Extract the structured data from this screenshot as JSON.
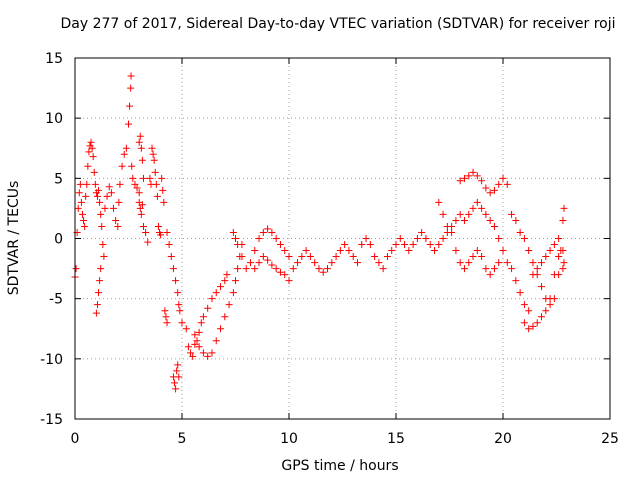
{
  "chart_data": {
    "type": "scatter",
    "title": "Day 277 of 2017, Sidereal Day-to-day VTEC variation (SDTVAR) for receiver roji",
    "xlabel": "GPS time / hours",
    "ylabel": "SDTVAR / TECUs",
    "xlim": [
      0,
      25
    ],
    "ylim": [
      -15,
      15
    ],
    "xticks": [
      0,
      5,
      10,
      15,
      20,
      25
    ],
    "yticks": [
      -15,
      -10,
      -5,
      0,
      5,
      10,
      15
    ],
    "grid": true,
    "marker": "+",
    "color": "#ff0000",
    "series": [
      {
        "name": "SDTVAR",
        "points": [
          [
            0.0,
            -3.2
          ],
          [
            0.05,
            -2.5
          ],
          [
            0.1,
            0.5
          ],
          [
            0.15,
            2.5
          ],
          [
            0.2,
            3.8
          ],
          [
            0.25,
            4.5
          ],
          [
            0.3,
            3.0
          ],
          [
            0.35,
            2.0
          ],
          [
            0.4,
            1.5
          ],
          [
            0.45,
            1.0
          ],
          [
            0.5,
            3.5
          ],
          [
            0.55,
            4.5
          ],
          [
            0.6,
            6.0
          ],
          [
            0.65,
            7.2
          ],
          [
            0.7,
            7.7
          ],
          [
            0.75,
            8.0
          ],
          [
            0.8,
            7.5
          ],
          [
            0.85,
            6.8
          ],
          [
            0.9,
            5.5
          ],
          [
            0.95,
            4.5
          ],
          [
            1.0,
            3.8
          ],
          [
            1.05,
            3.5
          ],
          [
            1.1,
            4.0
          ],
          [
            1.15,
            3.0
          ],
          [
            1.2,
            2.0
          ],
          [
            1.25,
            1.0
          ],
          [
            1.3,
            -0.5
          ],
          [
            1.35,
            -1.5
          ],
          [
            1.0,
            -6.2
          ],
          [
            1.05,
            -5.5
          ],
          [
            1.1,
            -4.5
          ],
          [
            1.15,
            -3.5
          ],
          [
            1.2,
            -2.5
          ],
          [
            1.4,
            2.5
          ],
          [
            1.5,
            3.5
          ],
          [
            1.6,
            4.3
          ],
          [
            1.7,
            3.8
          ],
          [
            1.8,
            2.5
          ],
          [
            1.9,
            1.5
          ],
          [
            2.0,
            1.0
          ],
          [
            2.05,
            3.0
          ],
          [
            2.1,
            4.5
          ],
          [
            2.2,
            6.0
          ],
          [
            2.3,
            7.0
          ],
          [
            2.4,
            7.5
          ],
          [
            2.5,
            9.5
          ],
          [
            2.55,
            11.0
          ],
          [
            2.6,
            12.5
          ],
          [
            2.62,
            13.5
          ],
          [
            2.65,
            6.0
          ],
          [
            2.7,
            5.0
          ],
          [
            2.8,
            4.5
          ],
          [
            2.9,
            4.2
          ],
          [
            3.0,
            3.8
          ],
          [
            3.0,
            8.0
          ],
          [
            3.05,
            8.5
          ],
          [
            3.1,
            7.5
          ],
          [
            3.15,
            6.5
          ],
          [
            3.2,
            5.0
          ],
          [
            3.0,
            3.0
          ],
          [
            3.05,
            2.5
          ],
          [
            3.1,
            2.0
          ],
          [
            3.15,
            2.8
          ],
          [
            3.2,
            1.0
          ],
          [
            3.3,
            0.5
          ],
          [
            3.4,
            -0.3
          ],
          [
            3.5,
            5.0
          ],
          [
            3.55,
            4.5
          ],
          [
            3.6,
            7.5
          ],
          [
            3.65,
            7.0
          ],
          [
            3.7,
            6.5
          ],
          [
            3.75,
            5.5
          ],
          [
            3.8,
            4.5
          ],
          [
            3.85,
            3.5
          ],
          [
            3.9,
            1.0
          ],
          [
            3.95,
            0.5
          ],
          [
            4.0,
            0.3
          ],
          [
            4.05,
            5.0
          ],
          [
            4.1,
            4.0
          ],
          [
            4.15,
            3.0
          ],
          [
            4.2,
            -6.0
          ],
          [
            4.25,
            -6.5
          ],
          [
            4.3,
            -7.0
          ],
          [
            4.3,
            0.5
          ],
          [
            4.4,
            -0.5
          ],
          [
            4.5,
            -1.5
          ],
          [
            4.6,
            -2.5
          ],
          [
            4.7,
            -3.5
          ],
          [
            4.8,
            -4.5
          ],
          [
            4.85,
            -5.5
          ],
          [
            4.9,
            -6.0
          ],
          [
            4.6,
            -11.5
          ],
          [
            4.65,
            -12.0
          ],
          [
            4.7,
            -12.5
          ],
          [
            4.75,
            -11.0
          ],
          [
            4.8,
            -10.5
          ],
          [
            4.85,
            -11.5
          ],
          [
            5.0,
            -7.0
          ],
          [
            5.2,
            -7.5
          ],
          [
            5.3,
            -9.0
          ],
          [
            5.4,
            -9.5
          ],
          [
            5.5,
            -9.8
          ],
          [
            5.6,
            -8.8
          ],
          [
            5.7,
            -8.5
          ],
          [
            5.8,
            -7.8
          ],
          [
            5.9,
            -7.0
          ],
          [
            6.0,
            -6.5
          ],
          [
            6.2,
            -5.8
          ],
          [
            6.4,
            -5.0
          ],
          [
            6.6,
            -4.5
          ],
          [
            6.8,
            -4.0
          ],
          [
            7.0,
            -3.5
          ],
          [
            7.1,
            -3.0
          ],
          [
            5.6,
            -8.0
          ],
          [
            5.8,
            -9.0
          ],
          [
            6.0,
            -9.5
          ],
          [
            6.2,
            -9.8
          ],
          [
            6.4,
            -9.5
          ],
          [
            6.6,
            -8.5
          ],
          [
            6.8,
            -7.5
          ],
          [
            7.0,
            -6.5
          ],
          [
            7.2,
            -5.5
          ],
          [
            7.4,
            -4.5
          ],
          [
            7.5,
            -3.5
          ],
          [
            7.6,
            -2.5
          ],
          [
            7.7,
            -1.5
          ],
          [
            7.8,
            -0.5
          ],
          [
            7.4,
            0.5
          ],
          [
            7.5,
            0.0
          ],
          [
            7.6,
            -0.5
          ],
          [
            7.8,
            -1.5
          ],
          [
            8.0,
            -2.5
          ],
          [
            8.2,
            -2.0
          ],
          [
            8.4,
            -1.0
          ],
          [
            8.6,
            0.0
          ],
          [
            8.8,
            0.5
          ],
          [
            9.0,
            0.8
          ],
          [
            9.2,
            0.5
          ],
          [
            9.4,
            0.0
          ],
          [
            9.6,
            -0.5
          ],
          [
            9.8,
            -1.0
          ],
          [
            10.0,
            -1.5
          ],
          [
            8.4,
            -2.5
          ],
          [
            8.6,
            -2.0
          ],
          [
            8.8,
            -1.5
          ],
          [
            9.0,
            -1.8
          ],
          [
            9.2,
            -2.2
          ],
          [
            9.4,
            -2.5
          ],
          [
            9.6,
            -2.8
          ],
          [
            9.8,
            -3.0
          ],
          [
            10.0,
            -3.5
          ],
          [
            10.2,
            -2.5
          ],
          [
            10.4,
            -2.0
          ],
          [
            10.6,
            -1.5
          ],
          [
            10.8,
            -1.0
          ],
          [
            11.0,
            -1.5
          ],
          [
            11.2,
            -2.0
          ],
          [
            11.4,
            -2.5
          ],
          [
            11.6,
            -2.8
          ],
          [
            11.8,
            -2.5
          ],
          [
            12.0,
            -2.0
          ],
          [
            12.2,
            -1.5
          ],
          [
            12.4,
            -1.0
          ],
          [
            12.6,
            -0.5
          ],
          [
            12.8,
            -1.0
          ],
          [
            13.0,
            -1.5
          ],
          [
            13.2,
            -2.0
          ],
          [
            13.4,
            -0.5
          ],
          [
            13.6,
            0.0
          ],
          [
            13.8,
            -0.5
          ],
          [
            14.0,
            -1.5
          ],
          [
            14.2,
            -2.0
          ],
          [
            14.4,
            -2.5
          ],
          [
            14.6,
            -1.5
          ],
          [
            14.8,
            -1.0
          ],
          [
            15.0,
            -0.5
          ],
          [
            15.2,
            0.0
          ],
          [
            15.4,
            -0.5
          ],
          [
            15.6,
            -1.0
          ],
          [
            15.8,
            -0.5
          ],
          [
            16.0,
            0.0
          ],
          [
            16.2,
            0.5
          ],
          [
            16.4,
            0.0
          ],
          [
            16.6,
            -0.5
          ],
          [
            16.8,
            -1.0
          ],
          [
            17.0,
            -0.5
          ],
          [
            17.2,
            0.0
          ],
          [
            17.4,
            0.5
          ],
          [
            17.6,
            1.0
          ],
          [
            17.8,
            1.5
          ],
          [
            18.0,
            2.0
          ],
          [
            18.2,
            1.5
          ],
          [
            18.4,
            2.0
          ],
          [
            18.6,
            2.5
          ],
          [
            18.8,
            3.0
          ],
          [
            19.0,
            2.5
          ],
          [
            19.2,
            2.0
          ],
          [
            19.4,
            1.5
          ],
          [
            19.6,
            1.0
          ],
          [
            19.8,
            0.0
          ],
          [
            20.0,
            -1.0
          ],
          [
            20.2,
            -2.0
          ],
          [
            20.4,
            -2.5
          ],
          [
            20.6,
            -3.5
          ],
          [
            20.8,
            -4.5
          ],
          [
            21.0,
            -5.5
          ],
          [
            21.2,
            -6.0
          ],
          [
            17.0,
            3.0
          ],
          [
            17.2,
            2.0
          ],
          [
            17.4,
            1.0
          ],
          [
            17.6,
            0.5
          ],
          [
            17.8,
            -1.0
          ],
          [
            18.0,
            -2.0
          ],
          [
            18.2,
            -2.5
          ],
          [
            18.4,
            -2.0
          ],
          [
            18.6,
            -1.5
          ],
          [
            18.8,
            -1.0
          ],
          [
            19.0,
            -1.5
          ],
          [
            19.2,
            -2.5
          ],
          [
            19.4,
            -3.0
          ],
          [
            19.6,
            -2.5
          ],
          [
            19.8,
            -2.0
          ],
          [
            18.0,
            4.8
          ],
          [
            18.2,
            5.0
          ],
          [
            18.4,
            5.2
          ],
          [
            18.6,
            5.5
          ],
          [
            18.8,
            5.2
          ],
          [
            19.0,
            4.8
          ],
          [
            19.2,
            4.2
          ],
          [
            19.4,
            3.8
          ],
          [
            19.6,
            4.0
          ],
          [
            19.8,
            4.5
          ],
          [
            20.0,
            5.0
          ],
          [
            20.2,
            4.5
          ],
          [
            20.4,
            2.0
          ],
          [
            20.6,
            1.5
          ],
          [
            20.8,
            0.5
          ],
          [
            21.0,
            0.0
          ],
          [
            21.2,
            -1.0
          ],
          [
            21.4,
            -2.0
          ],
          [
            21.6,
            -3.0
          ],
          [
            21.8,
            -4.0
          ],
          [
            22.0,
            -5.0
          ],
          [
            22.2,
            -5.5
          ],
          [
            22.4,
            -5.0
          ],
          [
            22.6,
            -3.0
          ],
          [
            22.7,
            -1.0
          ],
          [
            22.8,
            1.5
          ],
          [
            22.85,
            2.5
          ],
          [
            21.0,
            -7.0
          ],
          [
            21.2,
            -7.5
          ],
          [
            21.4,
            -7.3
          ],
          [
            21.6,
            -7.0
          ],
          [
            21.8,
            -6.5
          ],
          [
            22.0,
            -6.0
          ],
          [
            22.2,
            -5.0
          ],
          [
            22.4,
            -3.0
          ],
          [
            22.6,
            -1.5
          ],
          [
            22.8,
            -1.0
          ],
          [
            21.4,
            -3.0
          ],
          [
            21.6,
            -2.5
          ],
          [
            21.8,
            -2.0
          ],
          [
            22.0,
            -1.5
          ],
          [
            22.2,
            -1.0
          ],
          [
            22.4,
            -0.5
          ],
          [
            22.6,
            0.0
          ],
          [
            22.8,
            -2.5
          ],
          [
            22.85,
            -2.0
          ]
        ]
      }
    ]
  }
}
